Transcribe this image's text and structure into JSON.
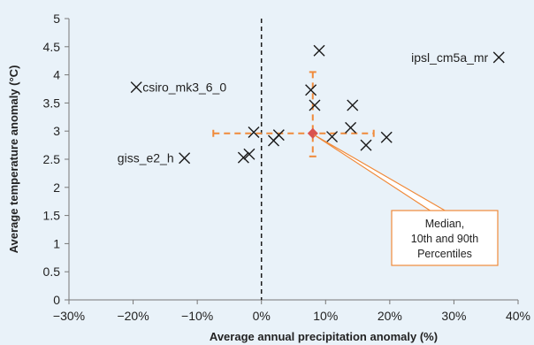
{
  "chart_data": {
    "type": "scatter",
    "xlabel": "Average annual precipitation anomaly (%)",
    "ylabel": "Average temperature anomaly (°C)",
    "xlim": [
      -30,
      40
    ],
    "ylim": [
      0,
      5
    ],
    "x_ticks": [
      {
        "value": -30,
        "label": "−30%"
      },
      {
        "value": -20,
        "label": "−20%"
      },
      {
        "value": -10,
        "label": "−10%"
      },
      {
        "value": 0,
        "label": "0%"
      },
      {
        "value": 10,
        "label": "10%"
      },
      {
        "value": 20,
        "label": "20%"
      },
      {
        "value": 30,
        "label": "30%"
      },
      {
        "value": 40,
        "label": "40%"
      }
    ],
    "y_ticks": [
      {
        "value": 0,
        "label": "0"
      },
      {
        "value": 0.5,
        "label": "0.5"
      },
      {
        "value": 1,
        "label": "1"
      },
      {
        "value": 1.5,
        "label": "1.5"
      },
      {
        "value": 2,
        "label": "2"
      },
      {
        "value": 2.5,
        "label": "2.5"
      },
      {
        "value": 3,
        "label": "3"
      },
      {
        "value": 3.5,
        "label": "3.5"
      },
      {
        "value": 4,
        "label": "4"
      },
      {
        "value": 4.5,
        "label": "4.5"
      },
      {
        "value": 5,
        "label": "5"
      }
    ],
    "zero_line_x": 0,
    "grid": false,
    "points": [
      {
        "x": -19.5,
        "y": 3.78,
        "label": "csiro_mk3_6_0"
      },
      {
        "x": -12,
        "y": 2.52,
        "label": "giss_e2_h"
      },
      {
        "x": 37,
        "y": 4.31,
        "label": "ipsl_cm5a_mr"
      },
      {
        "x": 9,
        "y": 4.43
      },
      {
        "x": 7.7,
        "y": 3.73
      },
      {
        "x": 8.3,
        "y": 3.46
      },
      {
        "x": 14.2,
        "y": 3.46
      },
      {
        "x": 13.9,
        "y": 3.06
      },
      {
        "x": -1.2,
        "y": 2.98
      },
      {
        "x": 2.7,
        "y": 2.93
      },
      {
        "x": 1.9,
        "y": 2.83
      },
      {
        "x": 11,
        "y": 2.9
      },
      {
        "x": 19.5,
        "y": 2.89
      },
      {
        "x": 16.3,
        "y": 2.75
      },
      {
        "x": -2.8,
        "y": 2.53
      },
      {
        "x": -1.9,
        "y": 2.59
      }
    ],
    "median": {
      "x": 8,
      "y": 2.96
    },
    "percentile_x": [
      -7.5,
      17.5
    ],
    "percentile_y": [
      2.55,
      4.05
    ],
    "annotation": {
      "lines": [
        "Median,",
        "10th and 90th",
        "Percentiles"
      ]
    },
    "colors": {
      "background": "#e9f2f9",
      "marker": "#1a1a1a",
      "accent": "#f08a3a",
      "median": "#d9534f",
      "axis": "#777777"
    }
  }
}
